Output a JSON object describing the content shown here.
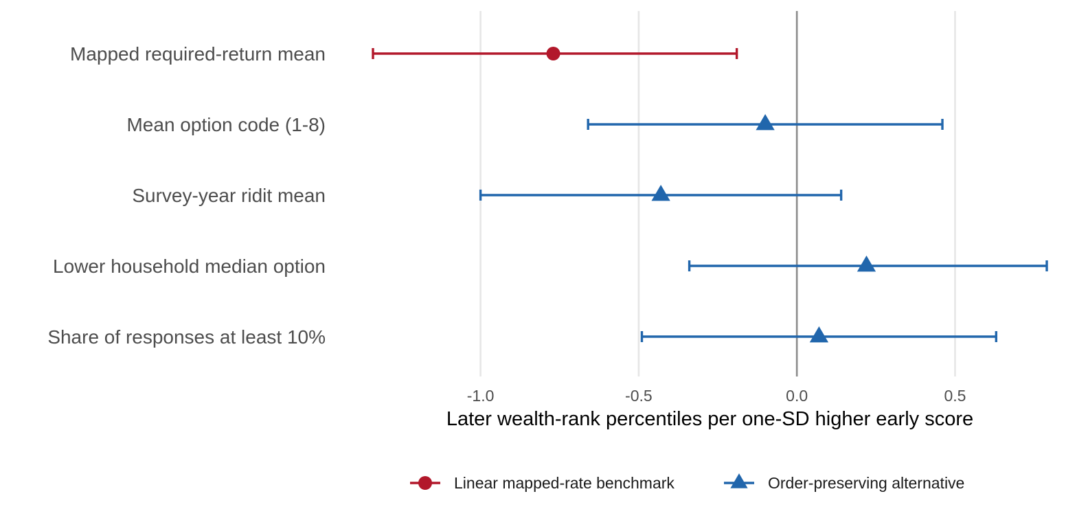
{
  "chart_data": {
    "type": "forest",
    "title": "",
    "xlabel": "Later wealth-rank percentiles per one-SD higher early score",
    "ylabel": "",
    "xlim": [
      -1.34,
      0.79
    ],
    "x_ticks": [
      -1.0,
      -0.5,
      0.0,
      0.5
    ],
    "x_tick_labels": [
      "-1.0",
      "-0.5",
      "0.0",
      "0.5"
    ],
    "reference_line": 0.0,
    "grid": "vertical-major",
    "legend_position": "bottom",
    "categories": [
      "Mapped required-return mean",
      "Mean option code (1-8)",
      "Survey-year ridit mean",
      "Lower household median option",
      "Share of responses at least 10%"
    ],
    "series": [
      {
        "name": "Linear mapped-rate benchmark",
        "color": "#b2182b",
        "marker": "circle",
        "points": [
          {
            "category": "Mapped required-return mean",
            "estimate": -0.77,
            "low": -1.34,
            "high": -0.19
          }
        ]
      },
      {
        "name": "Order-preserving alternative",
        "color": "#2166ac",
        "marker": "triangle",
        "points": [
          {
            "category": "Mean option code (1-8)",
            "estimate": -0.1,
            "low": -0.66,
            "high": 0.46
          },
          {
            "category": "Survey-year ridit mean",
            "estimate": -0.43,
            "low": -1.0,
            "high": 0.14
          },
          {
            "category": "Lower household median option",
            "estimate": 0.22,
            "low": -0.34,
            "high": 0.79
          },
          {
            "category": "Share of responses at least 10%",
            "estimate": 0.07,
            "low": -0.49,
            "high": 0.63
          }
        ]
      }
    ]
  }
}
